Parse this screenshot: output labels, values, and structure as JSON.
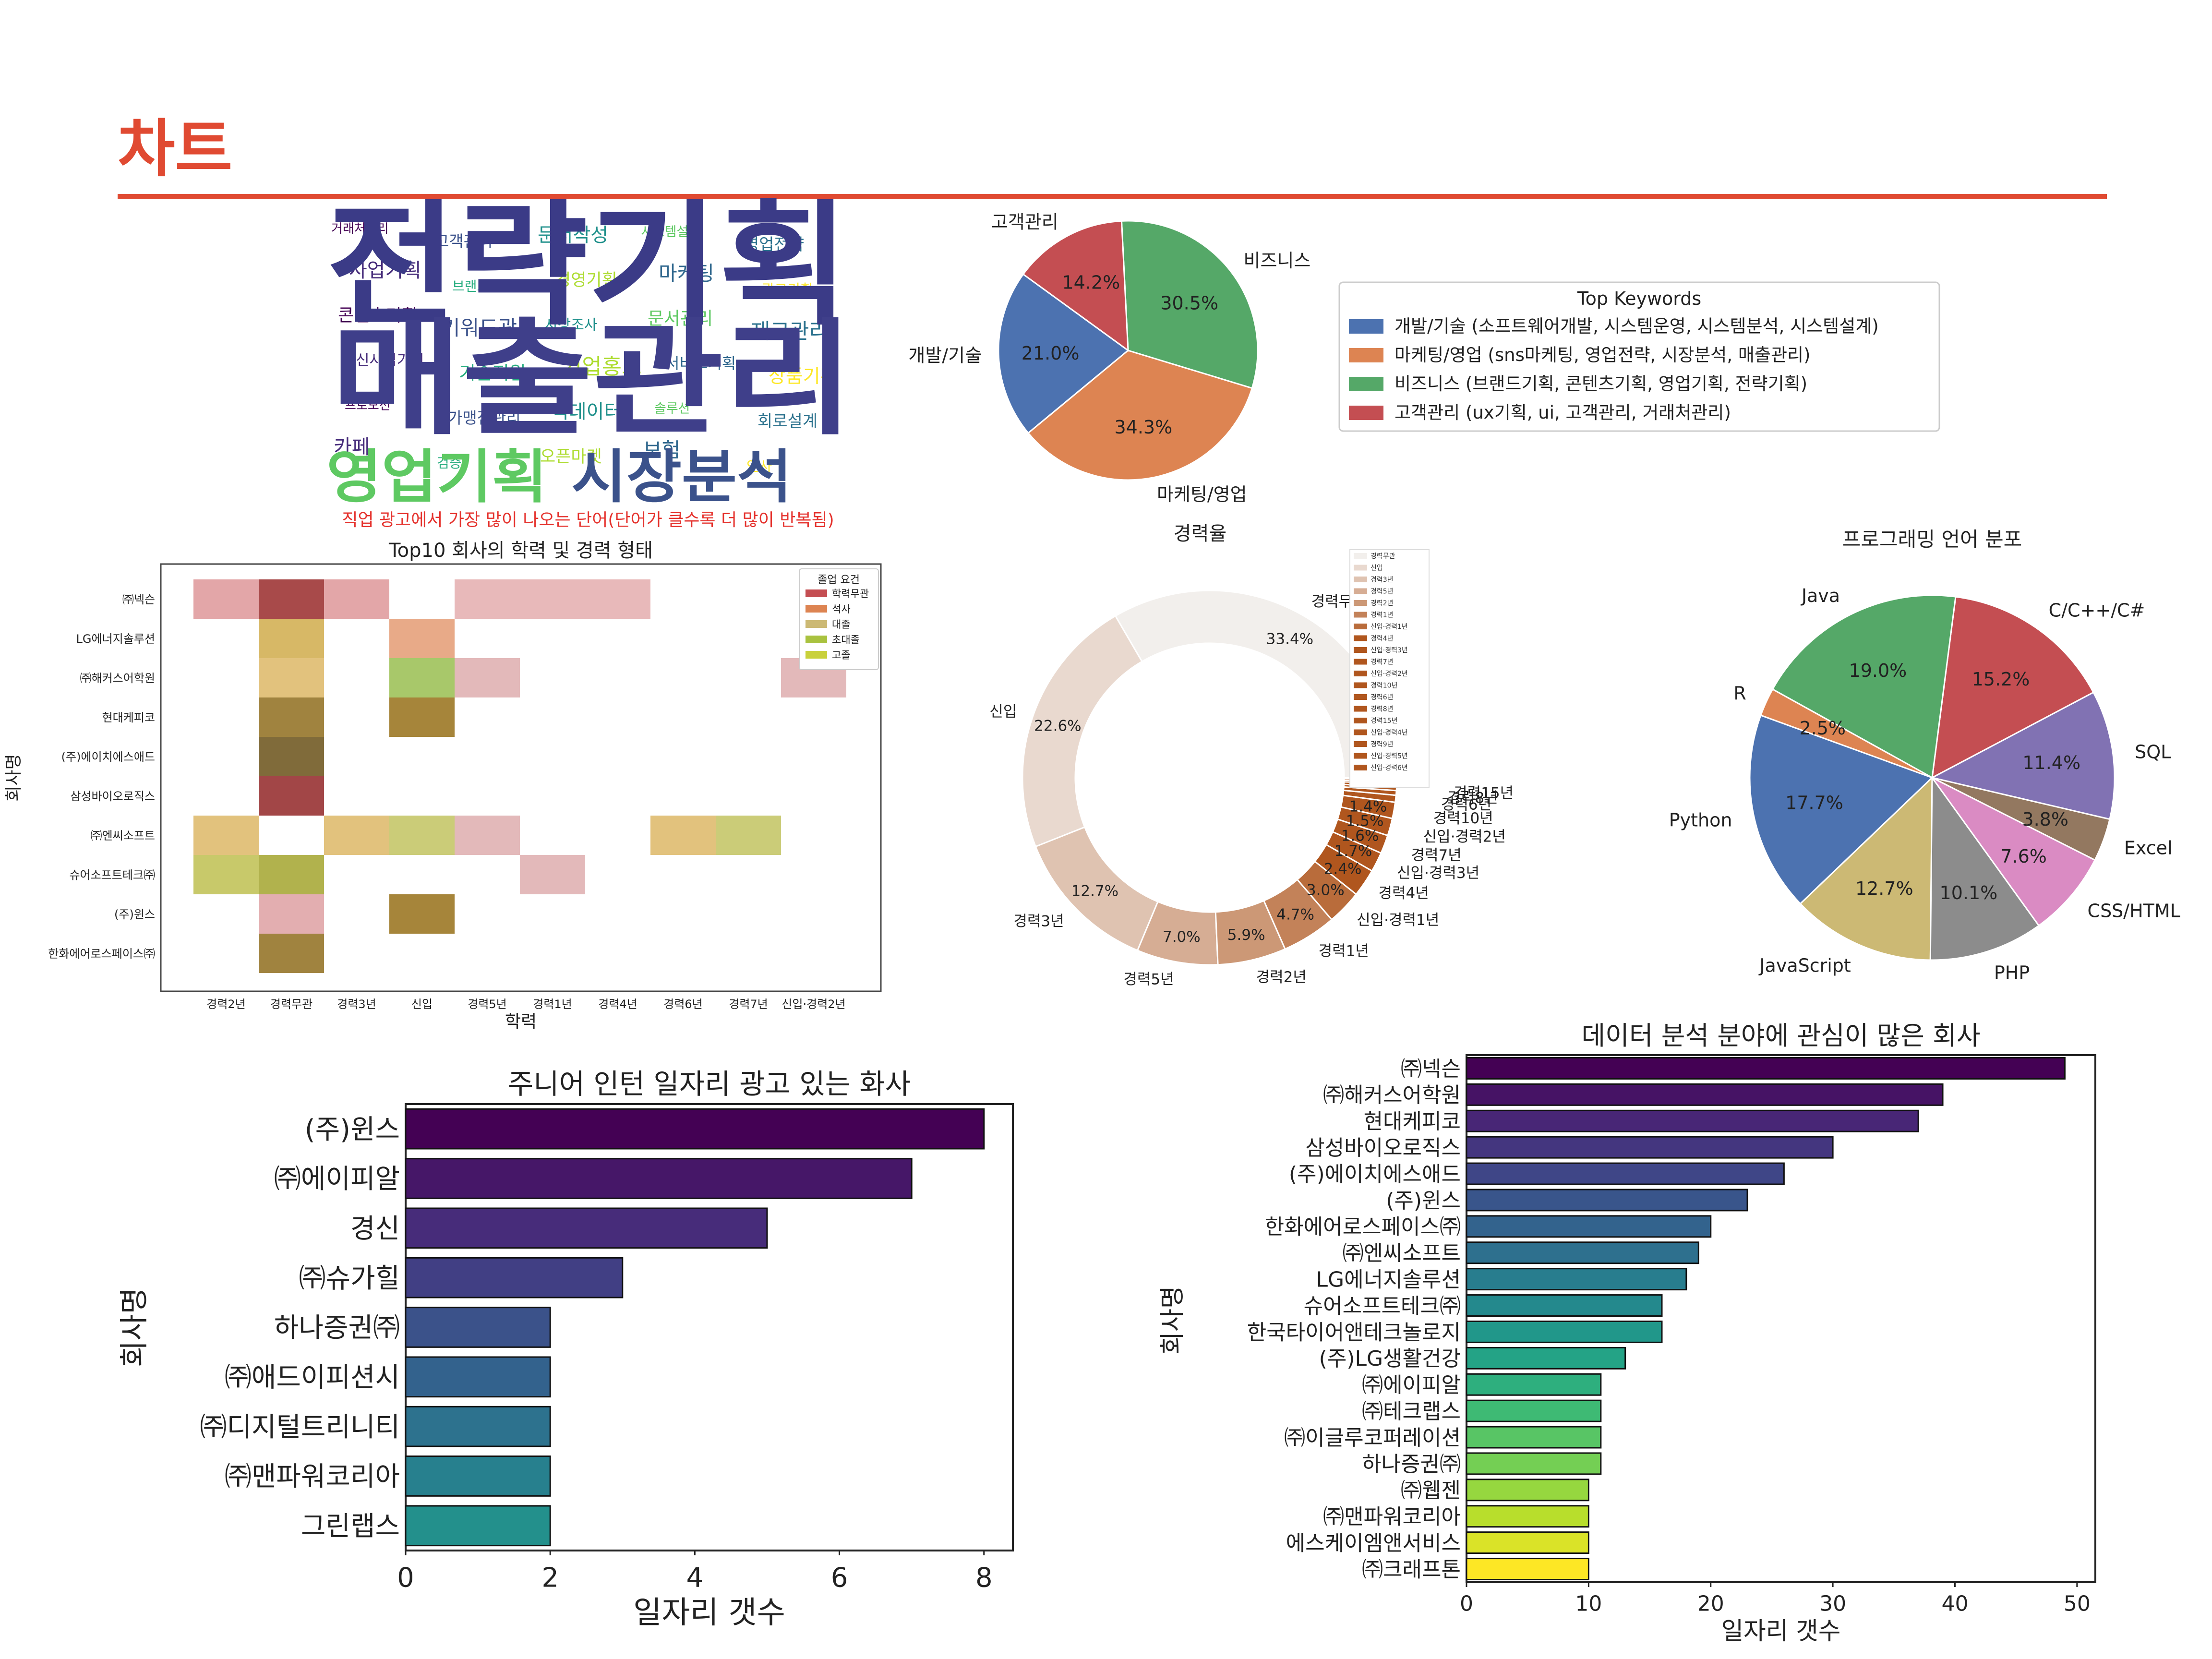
{
  "page": {
    "title": "차트"
  },
  "wordcloud": {
    "caption": "직업 광고에서 가장 많이 나오는 단어(단어가 클수록 더 많이 반복됨)",
    "words_big": [
      "전략기획",
      "매출관리",
      "영업기획",
      "시장분석"
    ],
    "words_medium": [
      "거래처관리",
      "고객관리",
      "문서작성",
      "시스템설계",
      "영업전략",
      "사업기획",
      "브랜드기획",
      "경영기획",
      "마케팅",
      "광고기획",
      "콘텐츠기획",
      "키워드광고",
      "시장조사",
      "문서관리",
      "재고관리",
      "신사업기획",
      "기술지원",
      "기업홍보",
      "서비스기획",
      "상품기획",
      "프로모션",
      "가맹점관리",
      "빅데이터",
      "솔루션",
      "회로설계",
      "카페",
      "검증",
      "오픈마켓",
      "보험",
      "인사"
    ]
  },
  "chart_data": [
    {
      "id": "keyword_pie",
      "type": "pie",
      "categories": [
        "개발/기술",
        "마케팅/영업",
        "비즈니스",
        "고객관리"
      ],
      "values": [
        21.0,
        34.3,
        30.5,
        14.2
      ],
      "colors": [
        "#4c72b0",
        "#dd8452",
        "#55a868",
        "#c44e52"
      ],
      "legend_title": "Top Keywords",
      "legend": [
        "개발/기술 (소프트웨어개발, 시스템운영, 시스템분석, 시스템설계)",
        "마케팅/영업 (sns마케팅, 영업전략, 시장분석, 매출관리)",
        "비즈니스 (브랜드기획, 콘텐츠기획, 영업기획, 전략기획)",
        "고객관리 (ux기획, ui, 고객관리, 거래처관리)"
      ],
      "legend_placement": "right"
    },
    {
      "id": "career_donut",
      "type": "pie",
      "title": "경력율",
      "categories": [
        "경력무관",
        "신입",
        "경력3년",
        "경력5년",
        "경력2년",
        "경력1년",
        "신입·경력1년",
        "경력4년",
        "신입·경력3년",
        "경력7년",
        "신입·경력2년",
        "경력10년",
        "경력6년",
        "경력8년",
        "경력15년",
        "신입·경력4년",
        "경력9년",
        "신입·경력5년",
        "신입·경력6년"
      ],
      "values": [
        33.4,
        22.6,
        12.7,
        7.0,
        5.9,
        4.7,
        3.0,
        2.4,
        1.7,
        1.6,
        1.5,
        1.4,
        0.6,
        0.4,
        0.3,
        0.3,
        0.2,
        0.2,
        0.1
      ],
      "labels": [
        "33.4%",
        "22.6%",
        "12.7%",
        "7.0%",
        "5.9%",
        "4.7%",
        "3.0%",
        "2.4%",
        "1.7%",
        "1.6%",
        "1.5%",
        "1.4%",
        "",
        "",
        "",
        "",
        "",
        "",
        ""
      ],
      "outer_labels": [
        "경력무관",
        "신입",
        "경력3년",
        "경력5년",
        "경력2년",
        "경력1년",
        "신입·경력1년",
        "경력4년",
        "신입·경력3년",
        "경력7년",
        "신입·경력2년",
        "경력10년",
        "경력6년",
        "경력8년",
        "경력15년",
        "",
        "",
        "",
        ""
      ],
      "legend": [
        "경력무관",
        "신입",
        "경력3년",
        "경력5년",
        "경력2년",
        "경력1년",
        "신입·경력1년",
        "경력4년",
        "신입·경력3년",
        "경력7년",
        "신입·경력2년",
        "경력10년",
        "경력6년",
        "경력8년",
        "경력15년",
        "신입·경력4년",
        "경력9년",
        "신입·경력5년",
        "신입·경력6년"
      ],
      "legend_placement": "right",
      "start_color": "#f2efec",
      "end_color": "#b0561e"
    },
    {
      "id": "lang_pie",
      "type": "pie",
      "title": "프로그래밍 언어 분포",
      "categories": [
        "Python",
        "JavaScript",
        "PHP",
        "CSS/HTML",
        "Excel",
        "SQL",
        "C/C++/C#",
        "Java",
        "R"
      ],
      "values": [
        17.7,
        12.7,
        10.1,
        7.6,
        3.8,
        11.4,
        15.2,
        19.0,
        2.5
      ],
      "colors": [
        "#4c72b0",
        "#ccb974",
        "#8c8c8c",
        "#da8bc3",
        "#937860",
        "#8172b3",
        "#c44e52",
        "#55a868",
        "#dd8452"
      ]
    },
    {
      "id": "heatmap",
      "type": "heatmap",
      "title": "Top10 회사의 학력 및 경력 형태",
      "xlabel": "학력",
      "ylabel": "회사명",
      "x": [
        "경력2년",
        "경력무관",
        "경력3년",
        "신입",
        "경력5년",
        "경력1년",
        "경력4년",
        "경력6년",
        "경력7년",
        "신입·경력2년"
      ],
      "y": [
        "㈜넥슨",
        "LG에너지솔루션",
        "㈜해커스어학원",
        "현대케피코",
        "(주)에이치에스애드",
        "삼성바이오로직스",
        "㈜엔씨소프트",
        "슈어소프트테크㈜",
        "(주)윈스",
        "한화에어로스페이스㈜"
      ],
      "legend_title": "졸업 요건",
      "legend": [
        "학력무관",
        "석사",
        "대졸",
        "초대졸",
        "고졸"
      ],
      "legend_colors": [
        "#c44e52",
        "#dd8452",
        "#ccb974",
        "#a9c23f",
        "#c9d13b"
      ],
      "cells": [
        {
          "row": 0,
          "col": 0,
          "color": "#e3a6a8"
        },
        {
          "row": 0,
          "col": 1,
          "color": "#a84a4a"
        },
        {
          "row": 0,
          "col": 2,
          "color": "#e3a6a8"
        },
        {
          "row": 0,
          "col": 4,
          "color": "#e8b9ba"
        },
        {
          "row": 0,
          "col": 5,
          "color": "#e8b9ba"
        },
        {
          "row": 0,
          "col": 6,
          "color": "#e8b9ba"
        },
        {
          "row": 1,
          "col": 1,
          "color": "#d7b866"
        },
        {
          "row": 1,
          "col": 3,
          "color": "#e8aa88"
        },
        {
          "row": 2,
          "col": 1,
          "color": "#e2c27d"
        },
        {
          "row": 2,
          "col": 3,
          "color": "#a8c86a"
        },
        {
          "row": 2,
          "col": 4,
          "color": "#e3b9ba"
        },
        {
          "row": 2,
          "col": 9,
          "color": "#e3b9ba"
        },
        {
          "row": 3,
          "col": 1,
          "color": "#a0833f"
        },
        {
          "row": 3,
          "col": 3,
          "color": "#a6853a"
        },
        {
          "row": 4,
          "col": 1,
          "color": "#806b3a"
        },
        {
          "row": 5,
          "col": 1,
          "color": "#a24647"
        },
        {
          "row": 6,
          "col": 0,
          "color": "#e2c27d"
        },
        {
          "row": 6,
          "col": 2,
          "color": "#e2c27d"
        },
        {
          "row": 6,
          "col": 3,
          "color": "#cbcc78"
        },
        {
          "row": 6,
          "col": 4,
          "color": "#e3b9ba"
        },
        {
          "row": 6,
          "col": 7,
          "color": "#e2c27d"
        },
        {
          "row": 6,
          "col": 8,
          "color": "#cbcc78"
        },
        {
          "row": 7,
          "col": 0,
          "color": "#c8c96a"
        },
        {
          "row": 7,
          "col": 1,
          "color": "#b1b24d"
        },
        {
          "row": 7,
          "col": 5,
          "color": "#e3b9ba"
        },
        {
          "row": 8,
          "col": 1,
          "color": "#e3aeb0"
        },
        {
          "row": 8,
          "col": 3,
          "color": "#a6853a"
        },
        {
          "row": 9,
          "col": 1,
          "color": "#a0833f"
        }
      ]
    },
    {
      "id": "junior_bar",
      "type": "bar",
      "orientation": "horizontal",
      "title": "주니어 인턴 일자리 광고 있는 화사",
      "xlabel": "일자리 갯수",
      "ylabel": "회사명",
      "categories": [
        "(주)윈스",
        "㈜에이피알",
        "경신",
        "㈜슈가힐",
        "하나증권㈜",
        "㈜애드이피션시",
        "㈜디지털트리니티",
        "㈜맨파워코리아",
        "그린랩스"
      ],
      "values": [
        8,
        7,
        5,
        3,
        2,
        2,
        2,
        2,
        2
      ],
      "xlim": [
        0,
        8.4
      ],
      "xticks": [
        0,
        2,
        4,
        6,
        8
      ],
      "palette": "viridis"
    },
    {
      "id": "data_bar",
      "type": "bar",
      "orientation": "horizontal",
      "title": "데이터 분석 분야에 관심이 많은 회사",
      "xlabel": "일자리 갯수",
      "ylabel": "회사명",
      "categories": [
        "㈜넥슨",
        "㈜해커스어학원",
        "현대케피코",
        "삼성바이오로직스",
        "(주)에이치에스애드",
        "(주)윈스",
        "한화에어로스페이스㈜",
        "㈜엔씨소프트",
        "LG에너지솔루션",
        "슈어소프트테크㈜",
        "한국타이어앤테크놀로지",
        "(주)LG생활건강",
        "㈜에이피알",
        "㈜테크랩스",
        "㈜이글루코퍼레이션",
        "하나증권㈜",
        "㈜웹젠",
        "㈜맨파워코리아",
        "에스케이엠앤서비스",
        "㈜크래프톤"
      ],
      "values": [
        49,
        39,
        37,
        30,
        26,
        23,
        20,
        19,
        18,
        16,
        16,
        13,
        11,
        11,
        11,
        11,
        10,
        10,
        10,
        10
      ],
      "xlim": [
        0,
        51.5
      ],
      "xticks": [
        0,
        10,
        20,
        30,
        40,
        50
      ],
      "palette": "viridis"
    }
  ]
}
